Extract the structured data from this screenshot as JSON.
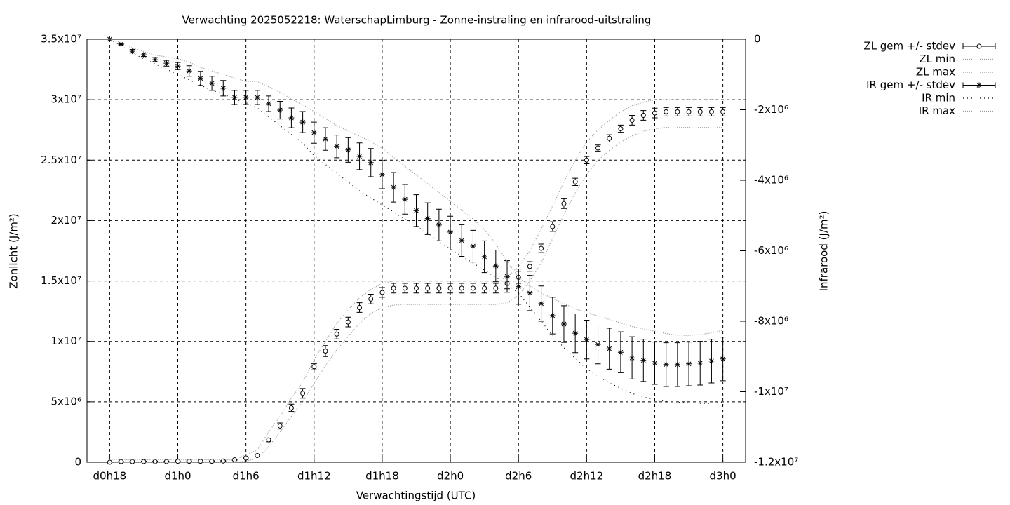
{
  "chart_data": {
    "type": "errorbar",
    "title": "Verwachting 2025052218: WaterschapLimburg - Zonne-instraling en infrarood-uitstraling",
    "xlabel": "Verwachtingstijd (UTC)",
    "ylabel": "Zonlicht (J/m²)",
    "y2label": "Infrarood (J/m²)",
    "grid": true,
    "legend": "right",
    "xlim": [
      16,
      74
    ],
    "xticks": [
      {
        "value": 18,
        "label": "d0h18"
      },
      {
        "value": 24,
        "label": "d1h0"
      },
      {
        "value": 30,
        "label": "d1h6"
      },
      {
        "value": 36,
        "label": "d1h12"
      },
      {
        "value": 42,
        "label": "d1h18"
      },
      {
        "value": 48,
        "label": "d2h0"
      },
      {
        "value": 54,
        "label": "d2h6"
      },
      {
        "value": 60,
        "label": "d2h12"
      },
      {
        "value": 66,
        "label": "d2h18"
      },
      {
        "value": 72,
        "label": "d3h0"
      }
    ],
    "ylim": [
      0,
      35000000.0
    ],
    "yticks": [
      0,
      {
        "value": 5000000.0,
        "label": "5x10⁶"
      },
      {
        "value": 10000000.0,
        "label": "1x10⁷"
      },
      {
        "value": 15000000.0,
        "label": "1.5x10⁷"
      },
      {
        "value": 20000000.0,
        "label": "2x10⁷"
      },
      {
        "value": 25000000.0,
        "label": "2.5x10⁷"
      },
      {
        "value": 30000000.0,
        "label": "3x10⁷"
      },
      {
        "value": 35000000.0,
        "label": "3.5x10⁷"
      }
    ],
    "y2lim": [
      -12000000.0,
      0
    ],
    "y2ticks": [
      0,
      {
        "value": -2000000.0,
        "label": "-2x10⁶"
      },
      {
        "value": -4000000.0,
        "label": "-4x10⁶"
      },
      {
        "value": -6000000.0,
        "label": "-6x10⁶"
      },
      {
        "value": -8000000.0,
        "label": "-8x10⁶"
      },
      {
        "value": -10000000.0,
        "label": "-1x10⁷"
      },
      {
        "value": -12000000.0,
        "label": "-1.2x10⁷"
      }
    ],
    "x": [
      18,
      19,
      20,
      21,
      22,
      23,
      24,
      25,
      26,
      27,
      28,
      29,
      30,
      31,
      32,
      33,
      34,
      35,
      36,
      37,
      38,
      39,
      40,
      41,
      42,
      43,
      44,
      45,
      46,
      47,
      48,
      49,
      50,
      51,
      52,
      53,
      54,
      55,
      56,
      57,
      58,
      59,
      60,
      61,
      62,
      63,
      64,
      65,
      66,
      67,
      68,
      69,
      70,
      71,
      72
    ],
    "series": [
      {
        "name": "ZL gem +/- stdev",
        "color": "#000000",
        "marker": "circle",
        "axis": "y",
        "values": [
          0,
          50000.0,
          50000.0,
          50000.0,
          50000.0,
          50000.0,
          80000.0,
          80000.0,
          80000.0,
          80000.0,
          100000.0,
          200000.0,
          350000.0,
          550000.0,
          1850000.0,
          3000000.0,
          4500000.0,
          5700000.0,
          7900000.0,
          9200000.0,
          10600000.0,
          11600000.0,
          12800000.0,
          13500000.0,
          14050000.0,
          14400000.0,
          14400000.0,
          14400000.0,
          14400000.0,
          14400000.0,
          14400000.0,
          14400000.0,
          14400000.0,
          14400000.0,
          14400000.0,
          14800000.0,
          15300000.0,
          16200000.0,
          17700000.0,
          19500000.0,
          21400000.0,
          23200000.0,
          25000000.0,
          26000000.0,
          26800000.0,
          27600000.0,
          28300000.0,
          28700000.0,
          28900000.0,
          29000000.0,
          29000000.0,
          29000000.0,
          29000000.0,
          29000000.0,
          29000000.0
        ],
        "errors": [
          30000.0,
          30000.0,
          30000.0,
          30000.0,
          30000.0,
          30000.0,
          30000.0,
          30000.0,
          30000.0,
          30000.0,
          30000.0,
          30000.0,
          50000.0,
          100000.0,
          150000.0,
          250000.0,
          300000.0,
          400000.0,
          250000.0,
          450000.0,
          400000.0,
          400000.0,
          400000.0,
          400000.0,
          400000.0,
          400000.0,
          400000.0,
          400000.0,
          400000.0,
          400000.0,
          400000.0,
          400000.0,
          400000.0,
          400000.0,
          400000.0,
          450000.0,
          500000.0,
          400000.0,
          350000.0,
          400000.0,
          400000.0,
          300000.0,
          300000.0,
          250000.0,
          300000.0,
          300000.0,
          400000.0,
          400000.0,
          400000.0,
          350000.0,
          350000.0,
          350000.0,
          350000.0,
          350000.0,
          350000.0
        ]
      },
      {
        "name": "ZL min",
        "color": "#9a9a9a",
        "dash": "1,2",
        "axis": "y",
        "values": [
          0,
          0,
          0,
          0,
          0,
          0,
          0,
          0,
          0,
          0,
          0,
          0,
          100000.0,
          300000.0,
          1300000.0,
          2500000.0,
          3800000.0,
          5000000.0,
          6500000.0,
          8000000.0,
          9300000.0,
          10400000.0,
          11500000.0,
          12300000.0,
          12800000.0,
          13000000.0,
          13050000.0,
          13050000.0,
          13050000.0,
          13050000.0,
          13050000.0,
          13050000.0,
          13050000.0,
          13050000.0,
          13050000.0,
          13200000.0,
          13800000.0,
          15000000.0,
          16500000.0,
          18500000.0,
          20500000.0,
          22300000.0,
          23800000.0,
          25000000.0,
          25800000.0,
          26500000.0,
          27000000.0,
          27400000.0,
          27600000.0,
          27700000.0,
          27700000.0,
          27700000.0,
          27700000.0,
          27700000.0,
          27700000.0
        ]
      },
      {
        "name": "ZL max",
        "color": "#9a9a9a",
        "dash": "1,2",
        "axis": "y",
        "values": [
          200000.0,
          200000.0,
          200000.0,
          200000.0,
          200000.0,
          200000.0,
          200000.0,
          200000.0,
          200000.0,
          200000.0,
          200000.0,
          200000.0,
          600000.0,
          1000000.0,
          2500000.0,
          3800000.0,
          5300000.0,
          6600000.0,
          8500000.0,
          10000000.0,
          11500000.0,
          12600000.0,
          13600000.0,
          14300000.0,
          14800000.0,
          15000000.0,
          15000000.0,
          15000000.0,
          15000000.0,
          15000000.0,
          15000000.0,
          15000000.0,
          15000000.0,
          15000000.0,
          15000000.0,
          15300000.0,
          16200000.0,
          17500000.0,
          19300000.0,
          21200000.0,
          23200000.0,
          25000000.0,
          26500000.0,
          27500000.0,
          28300000.0,
          29000000.0,
          29500000.0,
          29800000.0,
          30000000.0,
          30000000.0,
          30000000.0,
          30000000.0,
          30000000.0,
          30000000.0,
          30000000.0
        ]
      },
      {
        "name": "IR gem +/- stdev",
        "color": "#000000",
        "marker": "star",
        "axis": "y2",
        "values": [
          0,
          -140000.0,
          -340000.0,
          -440000.0,
          -580000.0,
          -680000.0,
          -760000.0,
          -900000.0,
          -1110000.0,
          -1250000.0,
          -1390000.0,
          -1650000.0,
          -1650000.0,
          -1650000.0,
          -1830000.0,
          -2010000.0,
          -2230000.0,
          -2350000.0,
          -2650000.0,
          -2830000.0,
          -3040000.0,
          -3140000.0,
          -3320000.0,
          -3500000.0,
          -3840000.0,
          -4200000.0,
          -4540000.0,
          -4860000.0,
          -5090000.0,
          -5270000.0,
          -5470000.0,
          -5710000.0,
          -5870000.0,
          -6170000.0,
          -6430000.0,
          -6730000.0,
          -7020000.0,
          -7200000.0,
          -7500000.0,
          -7840000.0,
          -8080000.0,
          -8340000.0,
          -8520000.0,
          -8660000.0,
          -8780000.0,
          -8880000.0,
          -9040000.0,
          -9110000.0,
          -9190000.0,
          -9230000.0,
          -9230000.0,
          -9210000.0,
          -9190000.0,
          -9130000.0,
          -9070000.0
        ],
        "errors": [
          0,
          20000.0,
          50000.0,
          50000.0,
          60000.0,
          80000.0,
          100000.0,
          150000.0,
          200000.0,
          200000.0,
          220000.0,
          200000.0,
          200000.0,
          200000.0,
          220000.0,
          250000.0,
          280000.0,
          300000.0,
          300000.0,
          320000.0,
          320000.0,
          350000.0,
          380000.0,
          400000.0,
          400000.0,
          420000.0,
          420000.0,
          450000.0,
          450000.0,
          450000.0,
          450000.0,
          450000.0,
          450000.0,
          450000.0,
          450000.0,
          450000.0,
          500000.0,
          500000.0,
          500000.0,
          520000.0,
          520000.0,
          550000.0,
          550000.0,
          550000.0,
          580000.0,
          580000.0,
          600000.0,
          600000.0,
          600000.0,
          620000.0,
          620000.0,
          620000.0,
          620000.0,
          620000.0,
          620000.0
        ]
      },
      {
        "name": "IR min",
        "color": "#000000",
        "dash": "1,5",
        "axis": "y2",
        "values": [
          0,
          -180000.0,
          -400000.0,
          -550000.0,
          -700000.0,
          -850000.0,
          -1000000.0,
          -1150000.0,
          -1300000.0,
          -1450000.0,
          -1550000.0,
          -1700000.0,
          -1800000.0,
          -1950000.0,
          -2200000.0,
          -2450000.0,
          -2700000.0,
          -2950000.0,
          -3300000.0,
          -3550000.0,
          -3800000.0,
          -4050000.0,
          -4300000.0,
          -4500000.0,
          -4700000.0,
          -4900000.0,
          -5100000.0,
          -5300000.0,
          -5500000.0,
          -5750000.0,
          -5950000.0,
          -6150000.0,
          -6350000.0,
          -6550000.0,
          -6750000.0,
          -6950000.0,
          -7200000.0,
          -7600000.0,
          -8000000.0,
          -8400000.0,
          -8750000.0,
          -9050000.0,
          -9350000.0,
          -9550000.0,
          -9750000.0,
          -9900000.0,
          -10050000.0,
          -10150000.0,
          -10220000.0,
          -10280000.0,
          -10300000.0,
          -10320000.0,
          -10330000.0,
          -10330000.0,
          -10300000.0
        ]
      },
      {
        "name": "IR max",
        "color": "#9a9a9a",
        "dash": "1,2",
        "axis": "y2",
        "values": [
          0,
          -100000.0,
          -250000.0,
          -350000.0,
          -450000.0,
          -500000.0,
          -550000.0,
          -650000.0,
          -800000.0,
          -900000.0,
          -1000000.0,
          -1100000.0,
          -1200000.0,
          -1200000.0,
          -1350000.0,
          -1500000.0,
          -1700000.0,
          -1850000.0,
          -2050000.0,
          -2250000.0,
          -2450000.0,
          -2600000.0,
          -2750000.0,
          -2900000.0,
          -3100000.0,
          -3350000.0,
          -3600000.0,
          -3850000.0,
          -4100000.0,
          -4350000.0,
          -4600000.0,
          -4850000.0,
          -5100000.0,
          -5400000.0,
          -5800000.0,
          -6300000.0,
          -6750000.0,
          -7000000.0,
          -7200000.0,
          -7350000.0,
          -7500000.0,
          -7650000.0,
          -7750000.0,
          -7850000.0,
          -7950000.0,
          -8050000.0,
          -8150000.0,
          -8220000.0,
          -8280000.0,
          -8350000.0,
          -8400000.0,
          -8400000.0,
          -8380000.0,
          -8330000.0,
          -8260000.0
        ]
      }
    ]
  }
}
